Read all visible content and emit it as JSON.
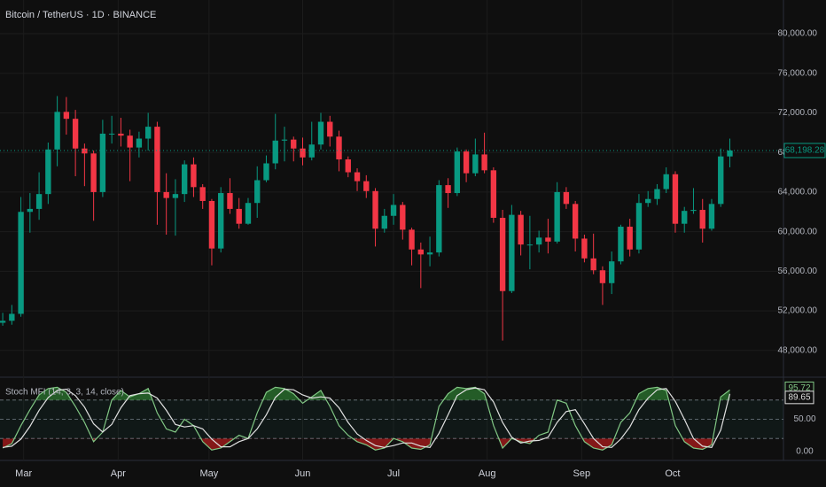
{
  "chart_data": {
    "type": "candlestick",
    "title": "Bitcoin / TetherUS · 1D · BINANCE",
    "up_color": "#089981",
    "down_color": "#f23645",
    "open": [
      50800,
      51000,
      51700,
      62000,
      62300,
      63800,
      68300,
      72100,
      71400,
      68400,
      67900,
      64000,
      69900,
      69900,
      69700,
      68500,
      69400,
      70600,
      64000,
      63400,
      63800,
      66800,
      64500,
      63100,
      58300,
      63900,
      62300,
      60800,
      62900,
      65200,
      66900,
      69200,
      69300,
      68400,
      67500,
      68800,
      71100,
      69600,
      67300,
      66000,
      65100,
      64100,
      60300,
      61600,
      62700,
      60200,
      58200,
      57700,
      57900,
      64700,
      63900,
      68100,
      65900,
      67800,
      66200,
      61400,
      54000,
      61700,
      58700,
      58700,
      59400,
      59000,
      64000,
      62800,
      59300,
      57300,
      56100,
      54800,
      57000,
      60500,
      58200,
      62900,
      63300,
      64300,
      65800,
      60800,
      62100,
      62200,
      60300,
      62800,
      67600
    ],
    "high": [
      51800,
      52600,
      63500,
      63900,
      66000,
      69000,
      73700,
      73600,
      72300,
      68900,
      68200,
      71300,
      71700,
      71500,
      70300,
      70100,
      72000,
      71100,
      65900,
      65300,
      67200,
      67500,
      64800,
      63300,
      64500,
      65400,
      63400,
      63400,
      66600,
      67700,
      71900,
      70600,
      69600,
      69500,
      71100,
      72000,
      71700,
      70200,
      67600,
      66400,
      65700,
      64400,
      62300,
      63800,
      63000,
      60400,
      58900,
      59500,
      65200,
      65400,
      68500,
      68300,
      69400,
      70000,
      66500,
      62200,
      62700,
      62100,
      61600,
      60100,
      61300,
      65000,
      64500,
      63100,
      59700,
      59800,
      56500,
      58000,
      60700,
      61300,
      63800,
      64100,
      64800,
      66500,
      66100,
      62500,
      64400,
      63300,
      63300,
      68400,
      69400
    ],
    "low": [
      50500,
      50600,
      51400,
      59900,
      61200,
      62800,
      66600,
      69800,
      65600,
      64600,
      61100,
      63500,
      68900,
      68600,
      65100,
      67500,
      68200,
      60700,
      59700,
      59600,
      63000,
      63500,
      62300,
      56600,
      57900,
      61800,
      60300,
      60700,
      61400,
      65000,
      66300,
      67100,
      67100,
      66700,
      67200,
      68300,
      68600,
      66100,
      65500,
      64100,
      63400,
      58500,
      59900,
      60700,
      59200,
      56600,
      54300,
      56500,
      57500,
      62400,
      63600,
      65000,
      65600,
      65900,
      60900,
      49000,
      53800,
      57600,
      56200,
      57900,
      57800,
      58800,
      62300,
      58000,
      56900,
      55700,
      52600,
      53700,
      56700,
      57500,
      57800,
      62500,
      62700,
      63900,
      59900,
      59900,
      61800,
      58900,
      60100,
      62500,
      66500
    ],
    "close": [
      51000,
      51700,
      62000,
      62300,
      63800,
      68300,
      72100,
      71400,
      68400,
      67900,
      64000,
      69900,
      69900,
      69700,
      68500,
      69400,
      70600,
      64000,
      63400,
      63800,
      66800,
      64500,
      63100,
      58300,
      63900,
      62300,
      60800,
      62900,
      65200,
      66900,
      69200,
      69300,
      68400,
      67500,
      68800,
      71100,
      69600,
      67300,
      66000,
      65100,
      64100,
      60300,
      61600,
      62700,
      60200,
      58200,
      57700,
      57900,
      64700,
      63900,
      68100,
      65900,
      67800,
      66200,
      61400,
      54000,
      61700,
      58700,
      58700,
      59400,
      59000,
      64000,
      62800,
      59300,
      57300,
      56100,
      54800,
      57000,
      60500,
      58200,
      62900,
      63300,
      64300,
      65800,
      60800,
      62100,
      62200,
      60300,
      62800,
      67600,
      68198.28
    ],
    "close_label": "68,198.28",
    "ylim": [
      45300,
      83400
    ],
    "yticks": [
      {
        "value": 48000,
        "label": "48,000.00"
      },
      {
        "value": 52000,
        "label": "52,000.00"
      },
      {
        "value": 56000,
        "label": "56,000.00"
      },
      {
        "value": 60000,
        "label": "60,000.00"
      },
      {
        "value": 64000,
        "label": "64,000.00"
      },
      {
        "value": 68000,
        "label": "68,000.00"
      },
      {
        "value": 72000,
        "label": "72,000.00"
      },
      {
        "value": 76000,
        "label": "76,000.00"
      },
      {
        "value": 80000,
        "label": "80,000.00"
      }
    ],
    "xlim": [
      -0.3,
      85.9
    ],
    "xticks": [
      {
        "value": 2.3,
        "label": "Mar"
      },
      {
        "value": 12.7,
        "label": "Apr"
      },
      {
        "value": 22.7,
        "label": "May"
      },
      {
        "value": 33,
        "label": "Jun"
      },
      {
        "value": 43,
        "label": "Jul"
      },
      {
        "value": 53.3,
        "label": "Aug"
      },
      {
        "value": 63.7,
        "label": "Sep"
      },
      {
        "value": 73.7,
        "label": "Oct"
      }
    ],
    "grid": true,
    "indicator": {
      "type": "line",
      "title": "Stoch MFI (14, 3, 3, 14, close)",
      "ylim": [
        -14.3,
        115.7
      ],
      "yticks": [
        {
          "value": 0,
          "label": "0.00"
        },
        {
          "value": 50,
          "label": "50.00"
        }
      ],
      "levels": [
        20,
        50,
        80
      ],
      "overbought_color": "#2e7d32",
      "oversold_color": "#b71c1c",
      "series": [
        {
          "color": "#81c784",
          "values": [
            5,
            12,
            40,
            65,
            88,
            98,
            100,
            92,
            70,
            45,
            15,
            30,
            80,
            95,
            85,
            90,
            98,
            60,
            35,
            30,
            50,
            40,
            15,
            2,
            5,
            15,
            25,
            20,
            60,
            92,
            100,
            98,
            90,
            75,
            85,
            95,
            70,
            40,
            25,
            15,
            10,
            2,
            5,
            20,
            15,
            5,
            3,
            10,
            70,
            90,
            100,
            98,
            100,
            90,
            40,
            5,
            20,
            15,
            12,
            25,
            30,
            80,
            75,
            40,
            15,
            5,
            2,
            10,
            45,
            60,
            90,
            98,
            100,
            95,
            40,
            15,
            5,
            3,
            10,
            85,
            95.72
          ]
        },
        {
          "color": "#e0e0e0",
          "values": [
            6,
            8,
            19,
            39,
            64,
            84,
            95,
            97,
            87,
            69,
            43,
            30,
            42,
            68,
            87,
            90,
            91,
            83,
            64,
            42,
            38,
            40,
            35,
            19,
            7,
            7,
            15,
            20,
            35,
            57,
            84,
            97,
            96,
            88,
            83,
            85,
            83,
            68,
            45,
            27,
            17,
            9,
            6,
            9,
            13,
            13,
            8,
            6,
            28,
            57,
            87,
            96,
            99,
            96,
            77,
            45,
            22,
            13,
            16,
            17,
            22,
            45,
            62,
            65,
            43,
            20,
            7,
            6,
            19,
            38,
            65,
            83,
            96,
            98,
            78,
            50,
            20,
            8,
            6,
            33,
            89.65
          ]
        }
      ]
    }
  }
}
